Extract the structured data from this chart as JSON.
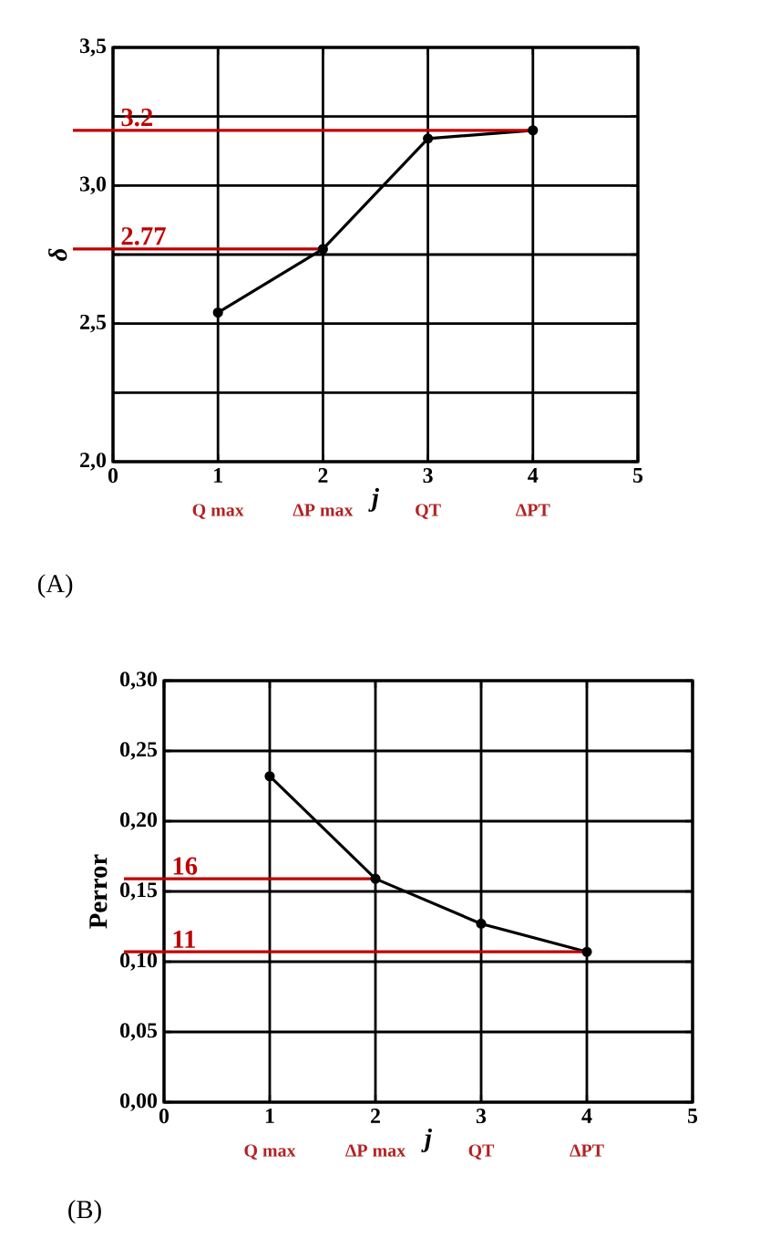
{
  "chart_data": [
    {
      "type": "line",
      "title": "(A)",
      "xlabel": "*j*",
      "ylabel": "*δ*",
      "x": [
        1,
        2,
        3,
        4
      ],
      "series": [
        {
          "color": "#000000",
          "values": [
            2.54,
            2.77,
            3.17,
            3.2
          ]
        }
      ],
      "xlim": [
        0,
        5
      ],
      "xticks": [
        0,
        1,
        2,
        3,
        4,
        5
      ],
      "ylim": [
        2.0,
        3.5
      ],
      "yticks": [
        {
          "value": 2.0,
          "label": "2,0"
        },
        {
          "value": 2.25,
          "label": null
        },
        {
          "value": 2.5,
          "label": "2,5"
        },
        {
          "value": 2.75,
          "label": null
        },
        {
          "value": 3.0,
          "label": "3,0"
        },
        {
          "value": 3.25,
          "label": null
        },
        {
          "value": 3.5,
          "label": "3,5"
        }
      ],
      "ref_lines": [
        {
          "axis": "y",
          "value": 3.2,
          "label": "3.2",
          "color": "#c00000"
        },
        {
          "axis": "y",
          "value": 2.77,
          "label": "2.77",
          "color": "#c00000"
        }
      ],
      "annotations": [
        "Q max",
        "ΔP max",
        "QT",
        "ΔPT"
      ],
      "grid": true,
      "marker": "circle",
      "line_style": "solid"
    },
    {
      "type": "line",
      "title": "(B)",
      "xlabel": "*j*",
      "ylabel": "Perror",
      "x": [
        1,
        2,
        3,
        4
      ],
      "series": [
        {
          "color": "#000000",
          "values": [
            0.232,
            0.159,
            0.127,
            0.107
          ]
        }
      ],
      "xlim": [
        0,
        5
      ],
      "xticks": [
        0,
        1,
        2,
        3,
        4,
        5
      ],
      "ylim": [
        0.0,
        0.3
      ],
      "yticks": [
        {
          "value": 0.0,
          "label": "0,00"
        },
        {
          "value": 0.05,
          "label": "0,05"
        },
        {
          "value": 0.1,
          "label": "0,10"
        },
        {
          "value": 0.15,
          "label": "0,15"
        },
        {
          "value": 0.2,
          "label": "0,20"
        },
        {
          "value": 0.25,
          "label": "0,25"
        },
        {
          "value": 0.3,
          "label": "0,30"
        }
      ],
      "ref_lines": [
        {
          "axis": "y",
          "value": 0.159,
          "label": "16",
          "color": "#c00000"
        },
        {
          "axis": "y",
          "value": 0.107,
          "label": "11",
          "color": "#c00000"
        }
      ],
      "annotations": [
        "Q max",
        "ΔP max",
        "QT",
        "ΔPT"
      ],
      "grid": true,
      "marker": "circle",
      "line_style": "solid"
    }
  ]
}
